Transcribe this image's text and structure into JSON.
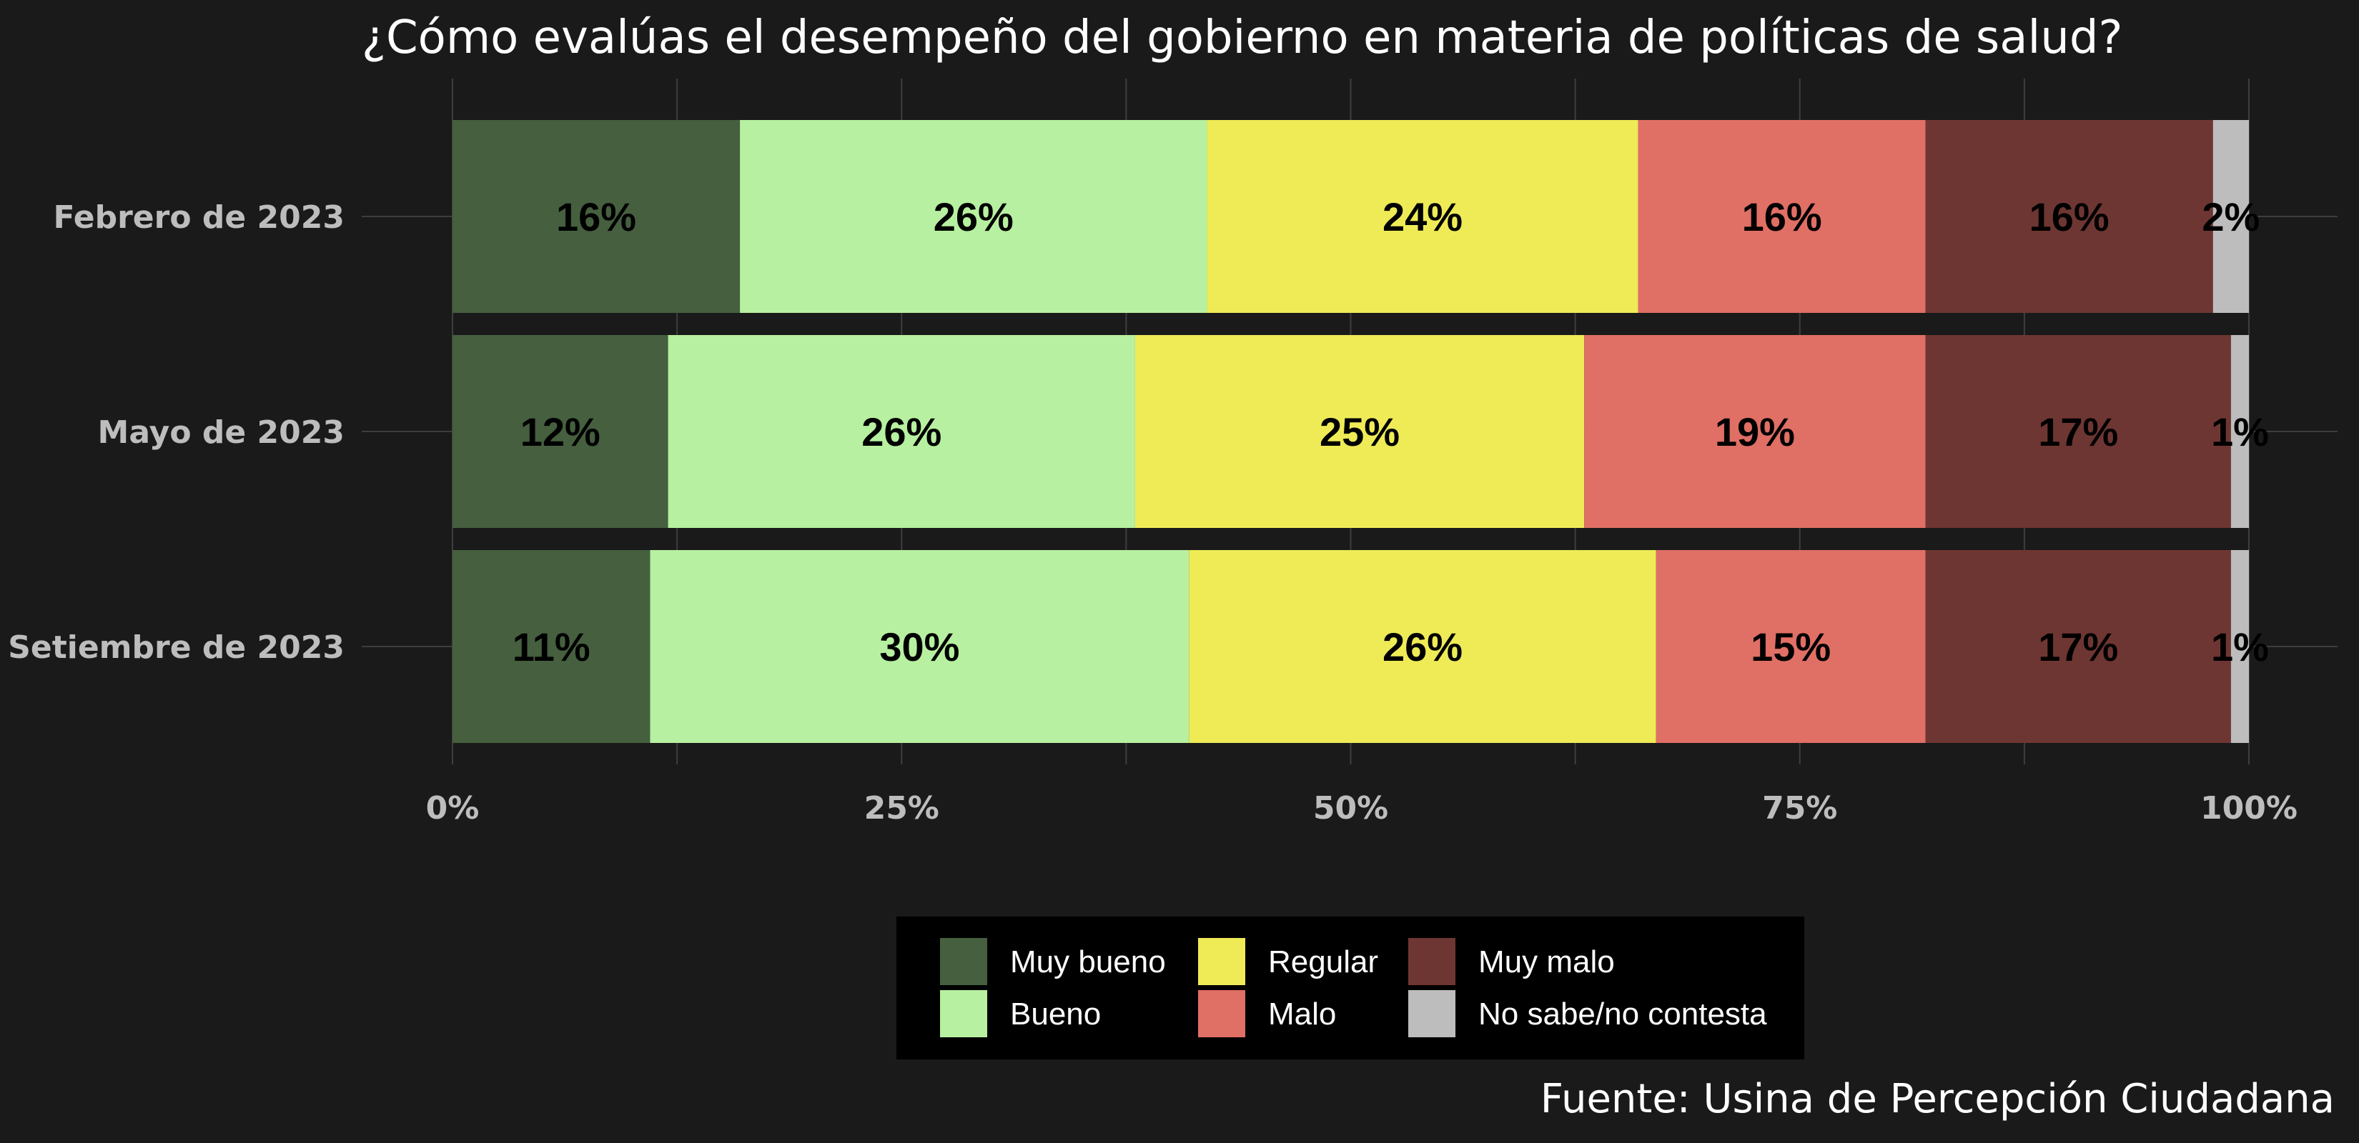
{
  "chart_data": {
    "type": "bar",
    "orientation": "horizontal",
    "stacked": true,
    "normalized": true,
    "title": "¿Cómo evalúas el desempeño del gobierno en materia de políticas de salud?",
    "caption": "Fuente: Usina de Percepción Ciudadana",
    "categories": [
      "Febrero de 2023",
      "Mayo de 2023",
      "Setiembre de 2023"
    ],
    "xlim": [
      0,
      100
    ],
    "xticks": [
      0,
      25,
      50,
      75,
      100
    ],
    "xtick_labels": [
      "0%",
      "25%",
      "50%",
      "75%",
      "100%"
    ],
    "grid": true,
    "legend_position": "bottom",
    "series": [
      {
        "name": "Muy bueno",
        "color": "#455f3f",
        "values": [
          16,
          12,
          11
        ],
        "labels": [
          "16%",
          "12%",
          "11%"
        ]
      },
      {
        "name": "Bueno",
        "color": "#b7f0a0",
        "values": [
          26,
          26,
          30
        ],
        "labels": [
          "26%",
          "26%",
          "30%"
        ]
      },
      {
        "name": "Regular",
        "color": "#eeeb57",
        "values": [
          24,
          25,
          26
        ],
        "labels": [
          "24%",
          "25%",
          "26%"
        ]
      },
      {
        "name": "Malo",
        "color": "#e06f65",
        "values": [
          16,
          19,
          15
        ],
        "labels": [
          "16%",
          "19%",
          "15%"
        ]
      },
      {
        "name": "Muy malo",
        "color": "#6e3632",
        "values": [
          16,
          17,
          17
        ],
        "labels": [
          "16%",
          "17%",
          "17%"
        ]
      },
      {
        "name": "No sabe/no contesta",
        "color": "#bdbdbd",
        "values": [
          2,
          1,
          1
        ],
        "labels": [
          "2%",
          "1%",
          "1%"
        ]
      }
    ]
  }
}
